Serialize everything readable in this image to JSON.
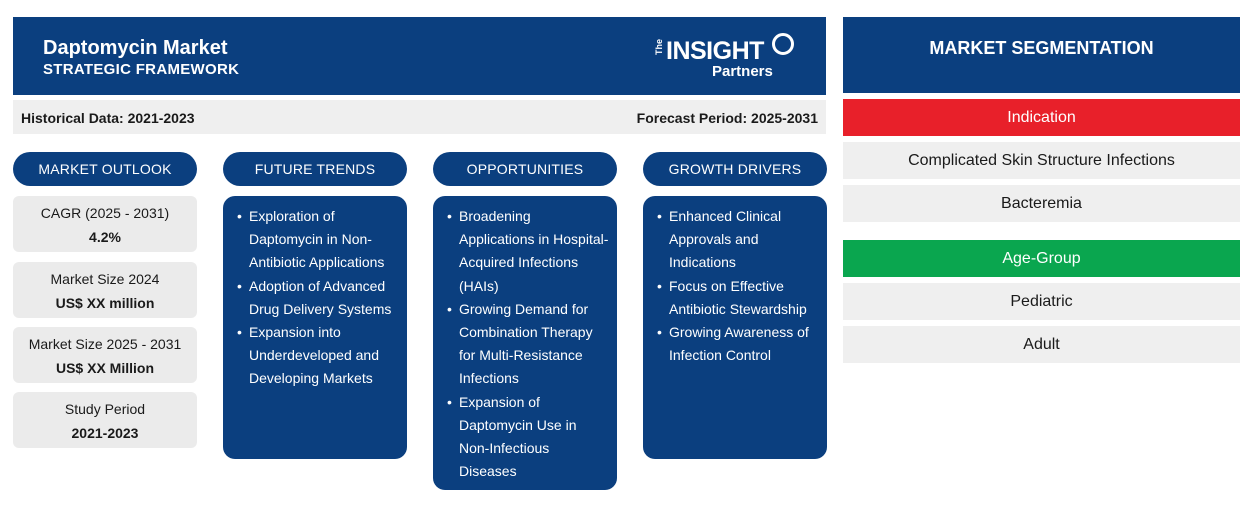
{
  "header": {
    "title": "Daptomycin Market",
    "subtitle": "STRATEGIC FRAMEWORK",
    "logo": {
      "the": "The",
      "insight": "INSIGHT",
      "partners": "Partners"
    }
  },
  "periods": {
    "historical": "Historical Data: 2021-2023",
    "forecast": "Forecast Period: 2025-2031"
  },
  "columns": {
    "outlook": "MARKET OUTLOOK",
    "trends": "FUTURE TRENDS",
    "opportunities": "OPPORTUNITIES",
    "drivers": "GROWTH DRIVERS"
  },
  "outlook": [
    {
      "label": "CAGR (2025 - 2031)",
      "value": "4.2%"
    },
    {
      "label": "Market Size 2024",
      "value": "US$ XX million"
    },
    {
      "label": "Market Size 2025 - 2031",
      "value": "US$ XX Million"
    },
    {
      "label": "Study Period",
      "value": "2021-2023"
    }
  ],
  "trends": [
    "Exploration of Daptomycin in Non-Antibiotic Applications",
    "Adoption of Advanced Drug Delivery Systems",
    "Expansion into Underdeveloped and Developing Markets"
  ],
  "opportunities": [
    "Broadening Applications in Hospital-Acquired Infections (HAIs)",
    "Growing Demand for Combination Therapy for Multi-Resistance Infections",
    "Expansion of Daptomycin Use in Non-Infectious Diseases"
  ],
  "drivers": [
    "Enhanced Clinical Approvals and Indications",
    "Focus on Effective Antibiotic Stewardship",
    "Growing Awareness of Infection Control"
  ],
  "segmentation": {
    "title": "MARKET SEGMENTATION",
    "categories": [
      {
        "name": "Indication",
        "color": "#e8202a",
        "items": [
          "Complicated Skin Structure Infections",
          "Bacteremia"
        ]
      },
      {
        "name": "Age-Group",
        "color": "#0aa64f",
        "items": [
          "Pediatric",
          "Adult"
        ]
      }
    ]
  }
}
